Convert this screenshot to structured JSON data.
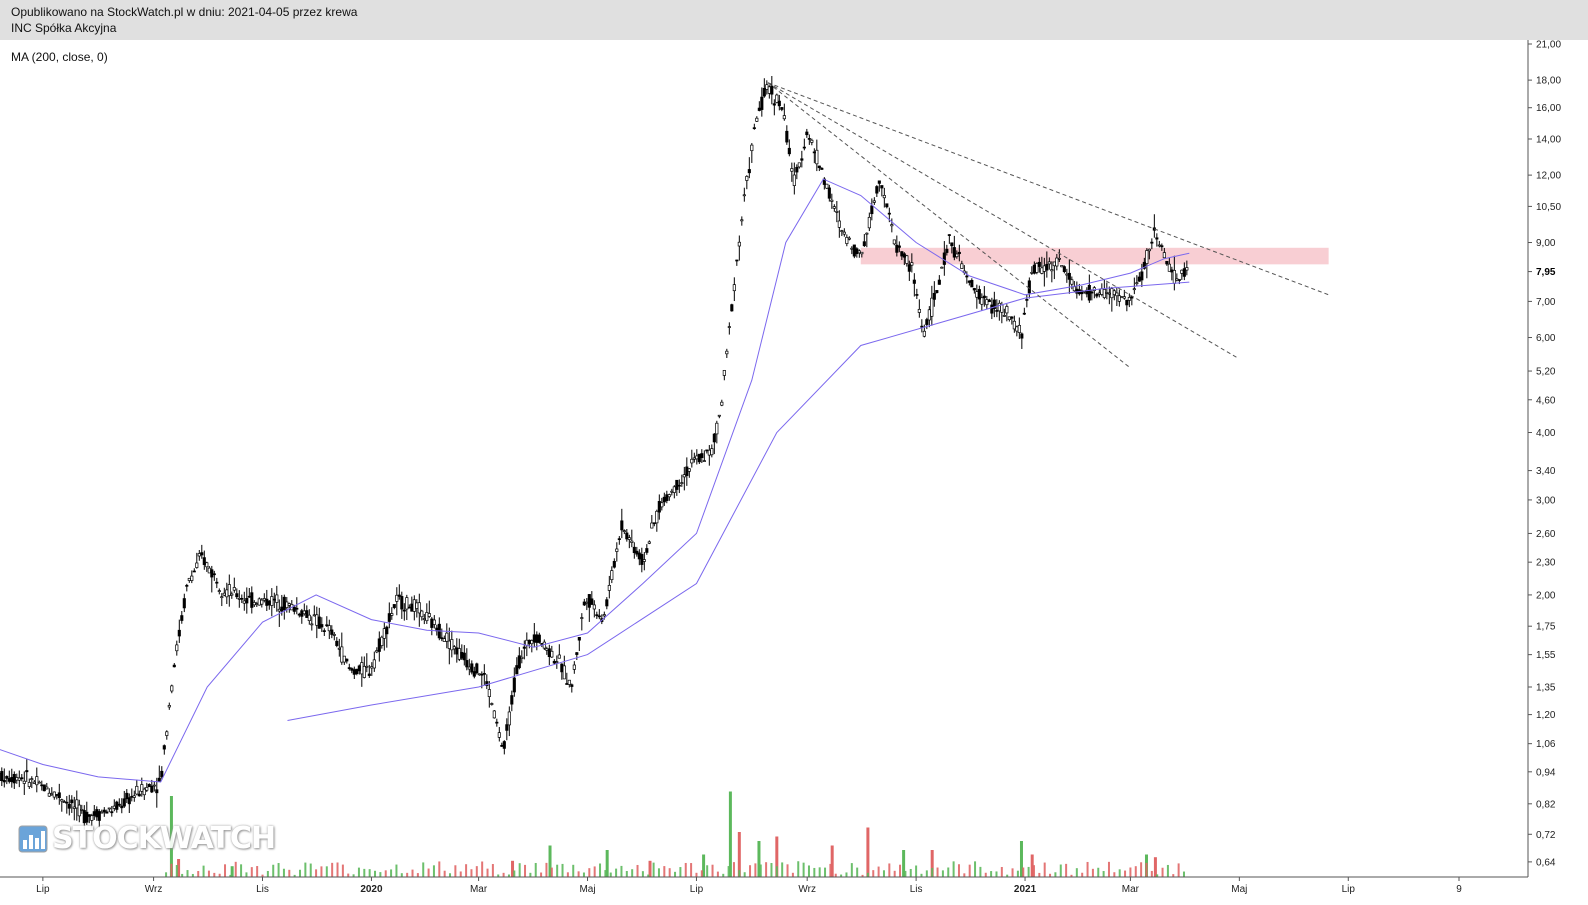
{
  "header": {
    "line1": "Opublikowano na StockWatch.pl w dniu: 2021-04-05 przez krewa",
    "line2": "INC Spółka Akcyjna"
  },
  "indicator_label": "MA (200, close, 0)",
  "watermark": {
    "text": "STOCKWATCH"
  },
  "colors": {
    "candles": "#000000",
    "ma_line": "#7b68ee",
    "trendlines": "#555555",
    "resistance_zone": "#f7c6cb",
    "volume_up": "#5cb85c",
    "volume_down": "#e06666",
    "volume_ma": "#000000",
    "header_bg": "#e0e0e0"
  },
  "chart_data": {
    "type": "line",
    "scale": "log",
    "ylim": [
      0.6,
      21
    ],
    "grid": false,
    "y_ticks": [
      "21,00",
      "18,00",
      "16,00",
      "14,00",
      "12,00",
      "10,50",
      "9,00",
      "7,00",
      "6,00",
      "5,20",
      "4,60",
      "4,00",
      "3,40",
      "3,00",
      "2,60",
      "2,30",
      "2,00",
      "1,75",
      "1,55",
      "1,35",
      "1,20",
      "1,06",
      "0,94",
      "0,82",
      "0,72",
      "0,64"
    ],
    "last_price_label": "7,95",
    "x_ticks": [
      "Lip",
      "Wrz",
      "Lis",
      "2020",
      "Mar",
      "Maj",
      "Lip",
      "Wrz",
      "Lis",
      "2021",
      "Mar",
      "Maj",
      "Lip",
      "9"
    ],
    "x_tick_dates": [
      "2019-07",
      "2019-09",
      "2019-11",
      "2020-01",
      "2020-03",
      "2020-05",
      "2020-07",
      "2020-09",
      "2020-11",
      "2021-01",
      "2021-03",
      "2021-05",
      "2021-07",
      "2021-09"
    ],
    "price": {
      "dates": [
        "2019-06-01",
        "2019-06-20",
        "2019-07-10",
        "2019-07-25",
        "2019-08-10",
        "2019-08-25",
        "2019-09-05",
        "2019-09-12",
        "2019-09-20",
        "2019-09-28",
        "2019-10-10",
        "2019-10-25",
        "2019-11-10",
        "2019-11-25",
        "2019-12-10",
        "2019-12-20",
        "2019-12-31",
        "2020-01-15",
        "2020-01-25",
        "2020-02-10",
        "2020-02-20",
        "2020-03-05",
        "2020-03-15",
        "2020-03-23",
        "2020-04-01",
        "2020-04-15",
        "2020-04-22",
        "2020-04-30",
        "2020-05-10",
        "2020-05-20",
        "2020-06-01",
        "2020-06-10",
        "2020-06-20",
        "2020-06-30",
        "2020-07-10",
        "2020-07-15",
        "2020-07-22",
        "2020-07-28",
        "2020-08-04",
        "2020-08-10",
        "2020-08-18",
        "2020-08-25",
        "2020-09-01",
        "2020-09-10",
        "2020-09-20",
        "2020-10-01",
        "2020-10-12",
        "2020-10-20",
        "2020-10-30",
        "2020-11-05",
        "2020-11-12",
        "2020-11-20",
        "2020-12-01",
        "2020-12-10",
        "2020-12-20",
        "2020-12-30",
        "2021-01-05",
        "2021-01-20",
        "2021-02-01",
        "2021-02-15",
        "2021-03-01",
        "2021-03-08",
        "2021-03-15",
        "2021-03-25",
        "2021-04-02"
      ],
      "close": [
        0.92,
        0.92,
        0.85,
        0.78,
        0.8,
        0.87,
        0.9,
        1.45,
        2.1,
        2.35,
        2.05,
        1.95,
        1.95,
        1.85,
        1.7,
        1.45,
        1.45,
        1.95,
        1.9,
        1.7,
        1.55,
        1.4,
        1.02,
        1.5,
        1.7,
        1.5,
        1.35,
        2.0,
        1.8,
        2.7,
        2.3,
        2.9,
        3.2,
        3.55,
        3.7,
        4.5,
        7.5,
        11.0,
        15.5,
        17.5,
        16.0,
        11.5,
        14.5,
        12.0,
        9.5,
        8.5,
        12.0,
        9.0,
        8.0,
        6.1,
        7.2,
        9.2,
        7.5,
        7.0,
        6.7,
        6.1,
        8.0,
        8.3,
        7.2,
        7.3,
        7.0,
        8.0,
        9.5,
        7.7,
        7.95
      ]
    },
    "ma": {
      "dates": [
        "2019-06-01",
        "2019-07-01",
        "2019-08-01",
        "2019-09-05",
        "2019-10-01",
        "2019-11-01",
        "2019-12-01",
        "2020-01-01",
        "2020-02-01",
        "2020-03-01",
        "2020-04-01",
        "2020-05-01",
        "2020-06-01",
        "2020-07-01",
        "2020-08-01",
        "2020-08-20",
        "2020-09-10",
        "2020-10-01",
        "2020-11-01",
        "2020-12-01",
        "2021-01-01",
        "2021-02-01",
        "2021-03-01",
        "2021-03-20",
        "2021-04-03"
      ],
      "values": [
        1.05,
        0.97,
        0.92,
        0.9,
        1.35,
        1.78,
        2.0,
        1.8,
        1.72,
        1.7,
        1.6,
        1.7,
        2.1,
        2.6,
        5.0,
        9.0,
        11.8,
        11.0,
        9.0,
        7.8,
        7.2,
        7.5,
        7.9,
        8.4,
        8.6
      ]
    },
    "ma200": {
      "dates": [
        "2019-11-15",
        "2020-01-01",
        "2020-03-01",
        "2020-05-01",
        "2020-07-01",
        "2020-08-15",
        "2020-10-01",
        "2020-11-15",
        "2021-01-01",
        "2021-02-15",
        "2021-04-03"
      ],
      "values": [
        1.17,
        1.25,
        1.35,
        1.55,
        2.1,
        4.0,
        5.8,
        6.4,
        7.1,
        7.4,
        7.6
      ]
    },
    "trendlines": [
      {
        "from": {
          "date": "2020-08-10",
          "value": 17.8
        },
        "to": {
          "date": "2021-02-28",
          "value": 5.3
        }
      },
      {
        "from": {
          "date": "2020-08-10",
          "value": 17.8
        },
        "to": {
          "date": "2021-04-30",
          "value": 5.5
        }
      },
      {
        "from": {
          "date": "2020-08-10",
          "value": 17.8
        },
        "to": {
          "date": "2021-06-20",
          "value": 7.2
        }
      }
    ],
    "resistance_zone": {
      "from_date": "2020-10-01",
      "to_date": "2021-06-20",
      "low": 8.2,
      "high": 8.8
    },
    "volume": {
      "scale_max": 1,
      "bars": [
        {
          "date": "2019-09-11",
          "v": 0.9,
          "up": true
        },
        {
          "date": "2019-09-15",
          "v": 0.2,
          "up": false
        },
        {
          "date": "2019-10-15",
          "v": 0.12,
          "up": true
        },
        {
          "date": "2020-03-20",
          "v": 0.18,
          "up": false
        },
        {
          "date": "2020-04-10",
          "v": 0.35,
          "up": true
        },
        {
          "date": "2020-05-12",
          "v": 0.3,
          "up": true
        },
        {
          "date": "2020-06-05",
          "v": 0.18,
          "up": false
        },
        {
          "date": "2020-07-05",
          "v": 0.25,
          "up": true
        },
        {
          "date": "2020-07-20",
          "v": 0.95,
          "up": true
        },
        {
          "date": "2020-07-25",
          "v": 0.5,
          "up": false
        },
        {
          "date": "2020-08-05",
          "v": 0.4,
          "up": true
        },
        {
          "date": "2020-08-15",
          "v": 0.45,
          "up": false
        },
        {
          "date": "2020-09-15",
          "v": 0.35,
          "up": false
        },
        {
          "date": "2020-10-05",
          "v": 0.55,
          "up": false
        },
        {
          "date": "2020-10-25",
          "v": 0.3,
          "up": true
        },
        {
          "date": "2020-11-10",
          "v": 0.3,
          "up": false
        },
        {
          "date": "2020-12-30",
          "v": 0.4,
          "up": true
        },
        {
          "date": "2021-01-05",
          "v": 0.25,
          "up": false
        },
        {
          "date": "2021-03-10",
          "v": 0.25,
          "up": true
        },
        {
          "date": "2021-03-15",
          "v": 0.22,
          "up": false
        }
      ]
    }
  }
}
